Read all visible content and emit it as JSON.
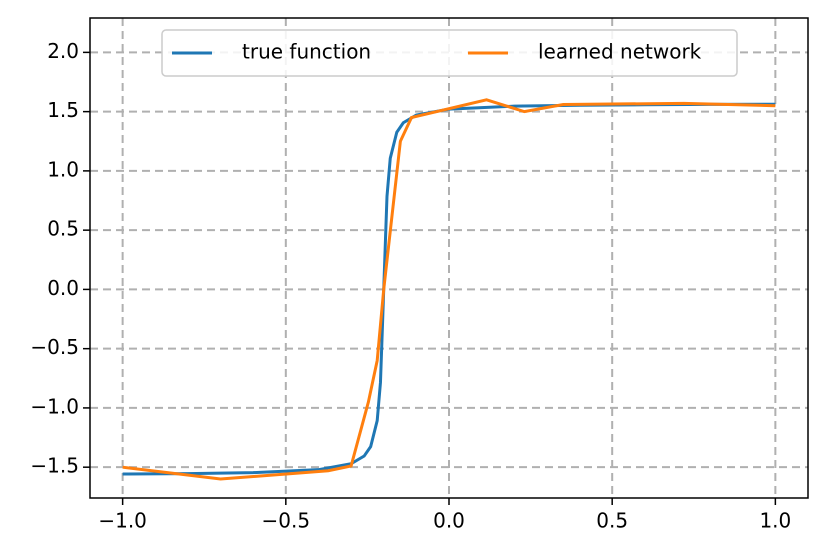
{
  "chart_data": {
    "type": "line",
    "xlim": [
      -1.1,
      1.1
    ],
    "ylim": [
      -1.76,
      2.29
    ],
    "xticks": [
      {
        "value": -1,
        "label": "−1.0"
      },
      {
        "value": -0.5,
        "label": "−0.5"
      },
      {
        "value": 0,
        "label": "0.0"
      },
      {
        "value": 0.5,
        "label": "0.5"
      },
      {
        "value": 1,
        "label": "1.0"
      }
    ],
    "yticks": [
      {
        "value": -1.5,
        "label": "−1.5"
      },
      {
        "value": -1,
        "label": "−1.0"
      },
      {
        "value": -0.5,
        "label": "−0.5"
      },
      {
        "value": 0,
        "label": "0.0"
      },
      {
        "value": 0.5,
        "label": "0.5"
      },
      {
        "value": 1,
        "label": "1.0"
      },
      {
        "value": 1.5,
        "label": "1.5"
      },
      {
        "value": 2,
        "label": "2.0"
      }
    ],
    "grid": true,
    "legend": "upper center",
    "series": [
      {
        "name": "true function",
        "color": "#1f77b4",
        "x": [
          -1,
          -0.8,
          -0.6,
          -0.4,
          -0.3,
          -0.26,
          -0.24,
          -0.22,
          -0.21,
          -0.2,
          -0.19,
          -0.18,
          -0.16,
          -0.14,
          -0.1,
          0,
          0.2,
          0.4,
          0.6,
          0.8,
          1
        ],
        "values": [
          -1.558,
          -1.554,
          -1.546,
          -1.521,
          -1.471,
          -1.406,
          -1.326,
          -1.107,
          -0.785,
          0,
          0.785,
          1.107,
          1.326,
          1.406,
          1.471,
          1.521,
          1.546,
          1.554,
          1.558,
          1.561,
          1.562
        ]
      },
      {
        "name": "learned network",
        "color": "#ff7f0e",
        "x": [
          -1,
          -0.7,
          -0.37,
          -0.3,
          -0.247,
          -0.22,
          -0.2,
          -0.149,
          -0.115,
          0.115,
          0.231,
          0.35,
          0.72,
          1
        ],
        "values": [
          -1.5,
          -1.6,
          -1.53,
          -1.49,
          -0.95,
          -0.6,
          0,
          1.25,
          1.45,
          1.6,
          1.5,
          1.56,
          1.57,
          1.55
        ]
      }
    ]
  }
}
